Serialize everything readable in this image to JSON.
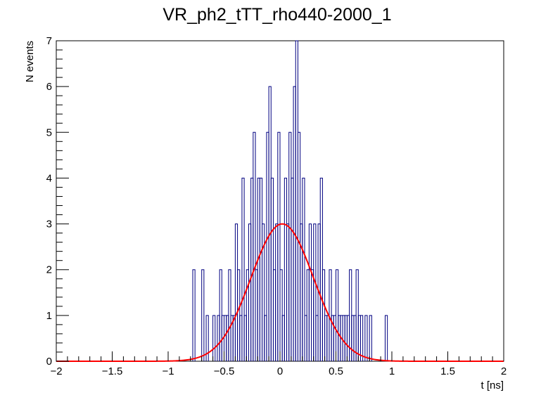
{
  "chart_data": {
    "type": "histogram",
    "title": "VR_ph2_tTT_rho440-2000_1",
    "xlabel": "t [ns]",
    "ylabel": "N events",
    "xlim": [
      -2,
      2
    ],
    "ylim": [
      0,
      7
    ],
    "grid": false,
    "legend": "none",
    "x_ticks": [
      -2,
      -1.5,
      -1,
      -0.5,
      0,
      0.5,
      1,
      1.5,
      2
    ],
    "x_tick_labels": [
      "−2",
      "−1.5",
      "−1",
      "−0.5",
      "0",
      "0.5",
      "1",
      "1.5",
      "2"
    ],
    "y_ticks": [
      0,
      1,
      2,
      3,
      4,
      5,
      6,
      7
    ],
    "y_tick_labels": [
      "0",
      "1",
      "2",
      "3",
      "4",
      "5",
      "6",
      "7"
    ],
    "bin_width": 0.02,
    "histogram": {
      "color": "#000080",
      "bin_low_edges": [
        -0.78,
        -0.7,
        -0.66,
        -0.6,
        -0.56,
        -0.54,
        -0.52,
        -0.5,
        -0.48,
        -0.46,
        -0.44,
        -0.42,
        -0.4,
        -0.38,
        -0.36,
        -0.34,
        -0.32,
        -0.3,
        -0.28,
        -0.26,
        -0.24,
        -0.22,
        -0.2,
        -0.18,
        -0.16,
        -0.14,
        -0.12,
        -0.1,
        -0.08,
        -0.06,
        -0.04,
        -0.02,
        0.0,
        0.02,
        0.04,
        0.06,
        0.08,
        0.1,
        0.12,
        0.14,
        0.16,
        0.18,
        0.2,
        0.22,
        0.24,
        0.26,
        0.28,
        0.3,
        0.32,
        0.34,
        0.36,
        0.38,
        0.4,
        0.42,
        0.44,
        0.46,
        0.48,
        0.5,
        0.52,
        0.54,
        0.56,
        0.58,
        0.6,
        0.62,
        0.64,
        0.66,
        0.68,
        0.7,
        0.72,
        0.76,
        0.8,
        0.94
      ],
      "counts": [
        2,
        2,
        1,
        1,
        1,
        2,
        1,
        1,
        1,
        2,
        1,
        1,
        3,
        2,
        1,
        4,
        1,
        2,
        3,
        4,
        5,
        2,
        4,
        4,
        3,
        1,
        5,
        6,
        4,
        2,
        3,
        5,
        2,
        1,
        4,
        3,
        5,
        4,
        6,
        7,
        5,
        3,
        4,
        1,
        2,
        3,
        2,
        3,
        1,
        3,
        4,
        2,
        1,
        1,
        2,
        1,
        1,
        2,
        1,
        1,
        1,
        1,
        1,
        2,
        1,
        1,
        2,
        1,
        1,
        1,
        1,
        1
      ]
    },
    "fit": {
      "color": "#ff0000",
      "function": "gaus",
      "amplitude": 3.0,
      "mean": 0.02,
      "sigma": 0.28
    }
  }
}
